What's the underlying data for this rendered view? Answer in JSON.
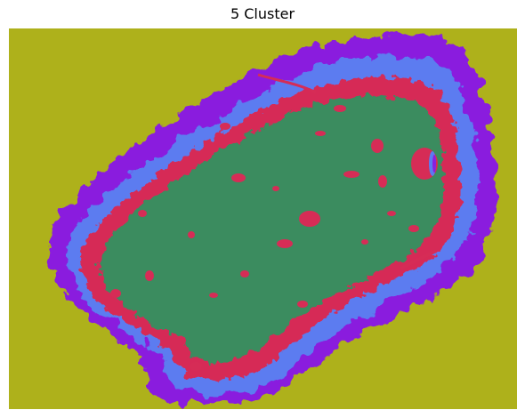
{
  "figure": {
    "title": "5 Cluster"
  },
  "clusters": [
    {
      "color": "#AEB11B"
    },
    {
      "color": "#8A1FDE"
    },
    {
      "color": "#5B7CF0"
    },
    {
      "color": "#D62C56"
    },
    {
      "color": "#3A8C5E"
    }
  ]
}
